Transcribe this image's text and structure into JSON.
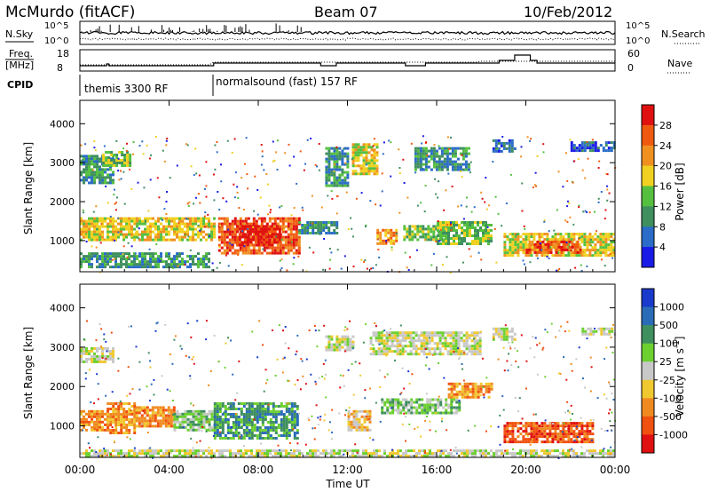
{
  "header": {
    "station": "McMurdo (fitACF)",
    "beam": "Beam 07",
    "date": "10/Feb/2012"
  },
  "summary_panel": {
    "nsky_label": "N.Sky",
    "nsearch_label": "N.Search",
    "freq_label_1": "Freq.",
    "freq_label_2": "[MHz]",
    "nave_label": "Nave",
    "cpid_label": "CPID",
    "noise_ticks_left": [
      "10^5",
      "10^0"
    ],
    "noise_ticks_right": [
      "10^5",
      "10^0"
    ],
    "freq_ticks": [
      "18",
      "8"
    ],
    "nave_ticks": [
      "60",
      "0"
    ],
    "cpid_segments": [
      {
        "label": "themis 3300 RF",
        "start_hour": 0
      },
      {
        "label": "normalsound (fast) 157 RF",
        "start_hour": 6.0
      }
    ]
  },
  "chart_data": [
    {
      "type": "heatmap",
      "title": "",
      "parameter": "Power",
      "ylabel": "Slant Range [km]",
      "xlabel": "",
      "ylim": [
        200,
        4600
      ],
      "xlim_hours": [
        0,
        24
      ],
      "y_ticks": [
        1000,
        2000,
        3000,
        4000
      ],
      "colorbar": {
        "label": "Power [dB]",
        "ticks": [
          "4",
          "8",
          "12",
          "16",
          "20",
          "24",
          "28"
        ],
        "colors": [
          "#1a1ae6",
          "#2a6cc8",
          "#3f8f5f",
          "#55c040",
          "#f0d020",
          "#f09020",
          "#f05a10",
          "#e01010"
        ]
      },
      "regions": [
        {
          "t0": 0.0,
          "t1": 6.0,
          "r0": 1000,
          "r1": 1600,
          "level": 4
        },
        {
          "t0": 0.0,
          "t1": 5.8,
          "r0": 300,
          "r1": 700,
          "level": 2
        },
        {
          "t0": 0.0,
          "t1": 1.5,
          "r0": 2500,
          "r1": 3200,
          "level": 2
        },
        {
          "t0": 1.0,
          "t1": 2.2,
          "r0": 2900,
          "r1": 3300,
          "level": 3
        },
        {
          "t0": 6.2,
          "t1": 9.8,
          "r0": 700,
          "r1": 1600,
          "level": 6
        },
        {
          "t0": 7.0,
          "t1": 9.0,
          "r0": 900,
          "r1": 1400,
          "level": 7
        },
        {
          "t0": 9.8,
          "t1": 11.5,
          "r0": 1200,
          "r1": 1500,
          "level": 2
        },
        {
          "t0": 11.0,
          "t1": 12.0,
          "r0": 2400,
          "r1": 3400,
          "level": 2
        },
        {
          "t0": 12.2,
          "t1": 13.3,
          "r0": 2700,
          "r1": 3500,
          "level": 4
        },
        {
          "t0": 13.3,
          "t1": 14.2,
          "r0": 900,
          "r1": 1300,
          "level": 5
        },
        {
          "t0": 14.5,
          "t1": 16.5,
          "r0": 1000,
          "r1": 1400,
          "level": 3
        },
        {
          "t0": 15.0,
          "t1": 17.5,
          "r0": 2800,
          "r1": 3400,
          "level": 2
        },
        {
          "t0": 16.0,
          "t1": 18.5,
          "r0": 900,
          "r1": 1500,
          "level": 3
        },
        {
          "t0": 18.5,
          "t1": 19.5,
          "r0": 3300,
          "r1": 3600,
          "level": 1
        },
        {
          "t0": 19.0,
          "t1": 24.0,
          "r0": 600,
          "r1": 1200,
          "level": 4
        },
        {
          "t0": 20.0,
          "t1": 22.5,
          "r0": 700,
          "r1": 1000,
          "level": 6
        },
        {
          "t0": 22.0,
          "t1": 24.0,
          "r0": 3300,
          "r1": 3550,
          "level": 1
        }
      ]
    },
    {
      "type": "heatmap",
      "title": "",
      "parameter": "Velocity",
      "ylabel": "Slant Range [km]",
      "xlabel": "Time UT",
      "ylim": [
        200,
        4600
      ],
      "xlim_hours": [
        0,
        24
      ],
      "y_ticks": [
        1000,
        2000,
        3000,
        4000
      ],
      "x_tick_labels": [
        "00:00",
        "04:00",
        "08:00",
        "12:00",
        "16:00",
        "20:00",
        "00:00"
      ],
      "colorbar": {
        "label": "Velocity [m s^-1]",
        "ticks": [
          "1000",
          "500",
          "100",
          "25",
          "-25",
          "-100",
          "-500",
          "-1000"
        ],
        "colors": [
          "#1a3acc",
          "#2a6cb8",
          "#3f8f5f",
          "#6cd030",
          "#c8c8c8",
          "#f0c830",
          "#f08a20",
          "#f05010",
          "#e01010"
        ]
      },
      "regions": [
        {
          "t0": 0.0,
          "t1": 1.2,
          "r0": 900,
          "r1": 1400,
          "level": 6
        },
        {
          "t0": 1.2,
          "t1": 2.5,
          "r0": 800,
          "r1": 1600,
          "level": 6
        },
        {
          "t0": 2.5,
          "t1": 4.2,
          "r0": 1000,
          "r1": 1500,
          "level": 6
        },
        {
          "t0": 4.2,
          "t1": 6.0,
          "r0": 900,
          "r1": 1400,
          "level": 3
        },
        {
          "t0": 6.0,
          "t1": 9.8,
          "r0": 700,
          "r1": 1600,
          "level": 2
        },
        {
          "t0": 0.0,
          "t1": 1.5,
          "r0": 2600,
          "r1": 3000,
          "level": 4
        },
        {
          "t0": 11.0,
          "t1": 12.2,
          "r0": 2900,
          "r1": 3300,
          "level": 4
        },
        {
          "t0": 12.0,
          "t1": 13.0,
          "r0": 900,
          "r1": 1400,
          "level": 5
        },
        {
          "t0": 13.5,
          "t1": 17.0,
          "r0": 1300,
          "r1": 1700,
          "level": 3
        },
        {
          "t0": 13.0,
          "t1": 18.0,
          "r0": 2800,
          "r1": 3400,
          "level": 4
        },
        {
          "t0": 16.5,
          "t1": 18.5,
          "r0": 1700,
          "r1": 2100,
          "level": 6
        },
        {
          "t0": 18.5,
          "t1": 19.5,
          "r0": 3200,
          "r1": 3500,
          "level": 4
        },
        {
          "t0": 19.0,
          "t1": 23.0,
          "r0": 600,
          "r1": 1100,
          "level": 7
        },
        {
          "t0": 22.5,
          "t1": 24.0,
          "r0": 3300,
          "r1": 3500,
          "level": 4
        },
        {
          "t0": 0.0,
          "t1": 24.0,
          "r0": 250,
          "r1": 400,
          "level": 4
        }
      ]
    }
  ]
}
